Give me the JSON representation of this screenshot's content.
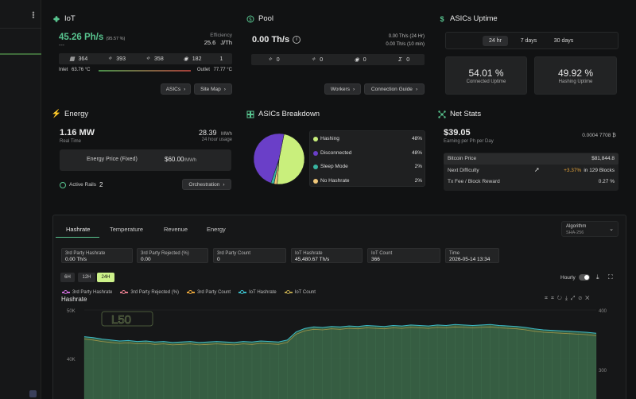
{
  "colors": {
    "accent": "#58c48f",
    "bg": "#111213",
    "card": "#1b1c1d",
    "chart_fill": "#3c6a4a",
    "positive": "#e3a23a"
  },
  "iot": {
    "title": "IoT",
    "hashrate": "45.26 Ph/s",
    "hashrate_pct": "(95.57 %)",
    "dash": "---",
    "efficiency_label": "Efficiency",
    "efficiency_value": "25.6",
    "efficiency_unit": "J/Th",
    "counts": [
      "364",
      "393",
      "358",
      "182",
      "1"
    ],
    "inlet_label": "Inlet",
    "inlet_value": "63.76 °C",
    "outlet_label": "Outlet",
    "outlet_value": "77.77 °C",
    "asics_button": "ASICs",
    "sitemap_button": "Site Map"
  },
  "pool": {
    "title": "Pool",
    "hashrate": "0.00 Th/s",
    "avg24": "0.00 Th/s",
    "avg24_label": "(24 Hr)",
    "avg10": "0.00 Th/s",
    "avg10_label": "(10 min)",
    "counts": [
      "0",
      "0",
      "0",
      "0"
    ],
    "workers_button": "Workers",
    "guide_button": "Connection Guide"
  },
  "uptime": {
    "title": "ASICs Uptime",
    "tabs": [
      "24 hr",
      "7 days",
      "30 days"
    ],
    "connected_value": "54.01 %",
    "connected_label": "Connected Uptime",
    "hashing_value": "49.92 %",
    "hashing_label": "Hashing Uptime"
  },
  "energy": {
    "title": "Energy",
    "mw": "1.16 MW",
    "realtime": "Real Time",
    "mwh_value": "28.39",
    "mwh_unit": "MWh",
    "usage_label": "24 hour usage",
    "price_label": "Energy Price (Fixed)",
    "price_value": "$60.00",
    "price_unit": "/MWh",
    "active_rails_label": "Active Rails",
    "active_rails_value": "2",
    "orchestration_button": "Orchestration"
  },
  "breakdown": {
    "title": "ASICs Breakdown",
    "items": [
      {
        "label": "Hashing",
        "pct": "48%",
        "color": "#c9ef7c",
        "value": 48
      },
      {
        "label": "Disconnected",
        "pct": "48%",
        "color": "#6a3fc8",
        "value": 48
      },
      {
        "label": "Sleep Mode",
        "pct": "2%",
        "color": "#38b4a0",
        "value": 2
      },
      {
        "label": "No Hashrate",
        "pct": "2%",
        "color": "#f0c77a",
        "value": 2
      }
    ]
  },
  "netstats": {
    "title": "Net Stats",
    "earning": "$39.05",
    "earning_label": "Earning per Ph per Day",
    "btc": "0.0004 7708 ₿",
    "rows": [
      {
        "label": "Bitcoin Price",
        "value": "$81,844.8",
        "extra": ""
      },
      {
        "label": "Next Difficulty",
        "value": "in 129 Blocks",
        "extra": "+3.37%"
      },
      {
        "label": "Tx Fee / Block Reward",
        "value": "0.27 %",
        "extra": ""
      }
    ]
  },
  "bottom": {
    "tabs": [
      "Hashrate",
      "Temperature",
      "Revenue",
      "Energy"
    ],
    "algorithm_label": "Algorithm",
    "algorithm_value": "SHA-256",
    "stats": [
      {
        "label": "3rd Party Hashrate",
        "value": "0.00 Th/s"
      },
      {
        "label": "3rd Party Rejected (%)",
        "value": "0.00"
      },
      {
        "label": "3rd Party Count",
        "value": "0"
      },
      {
        "label": "IoT Hashrate",
        "value": "45,480.67 Th/s"
      },
      {
        "label": "IoT Count",
        "value": "366"
      },
      {
        "label": "Time",
        "value": "2026-05-14 13:34"
      }
    ],
    "ranges": [
      "6H",
      "12H",
      "24H"
    ],
    "hourly_label": "Hourly"
  },
  "chart_data": {
    "type": "area",
    "title": "Hashrate",
    "series": [
      {
        "name": "3rd Party Hashrate",
        "color": "#c56ad2"
      },
      {
        "name": "3rd Party Rejected (%)",
        "color": "#e07a8a"
      },
      {
        "name": "3rd Party Count",
        "color": "#e3a23a"
      },
      {
        "name": "IoT Hashrate",
        "color": "#3bbac7"
      },
      {
        "name": "IoT Count",
        "color": "#b9a24a"
      }
    ],
    "y_left_ticks": [
      "50K",
      "40K"
    ],
    "y_right_ticks": [
      "400",
      "300"
    ],
    "watermark": "L50",
    "iot_hashrate": [
      44500,
      44300,
      44000,
      43800,
      43600,
      43700,
      43500,
      43600,
      43400,
      43500,
      43300,
      43400,
      43500,
      43300,
      43400,
      43500,
      43400,
      43300,
      43500,
      43400,
      43600,
      43500,
      43400,
      43800,
      45500,
      46200,
      46500,
      46400,
      46600,
      46500,
      46700,
      46600,
      46800,
      46700,
      46600,
      46800,
      46700,
      46900,
      46800,
      46700,
      46900,
      46800,
      47000,
      46900,
      46800,
      46900,
      47000,
      46800,
      46700,
      46600,
      46400,
      46100,
      45900,
      45800,
      45700,
      45600,
      45500,
      45400,
      45200
    ]
  }
}
